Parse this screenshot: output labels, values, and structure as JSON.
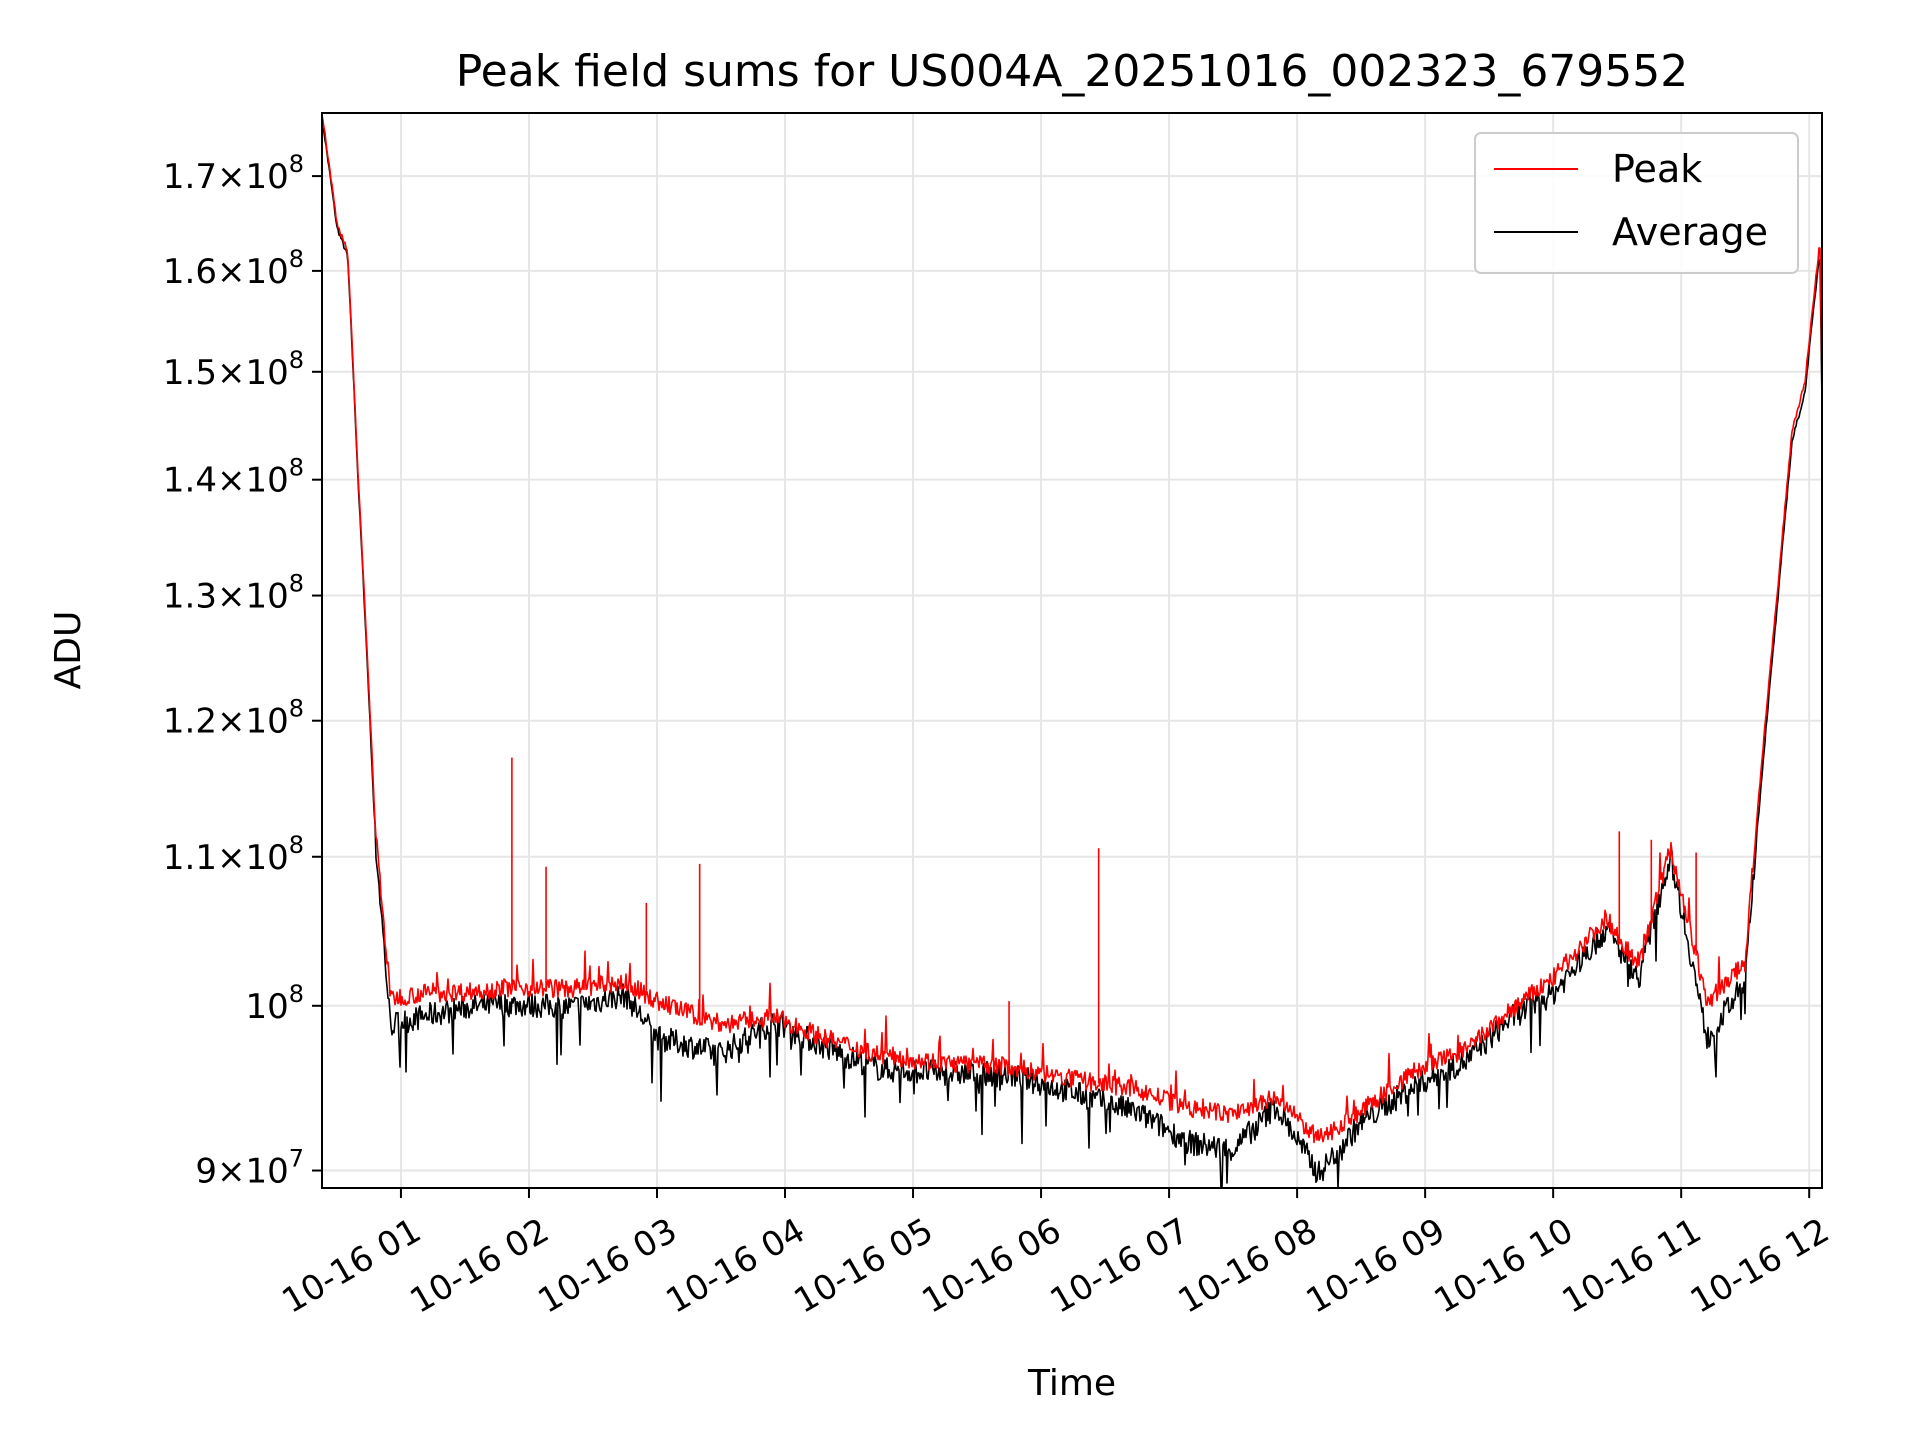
{
  "chart_data": {
    "type": "line",
    "title": "Peak field sums for US004A_20251016_002323_679552",
    "xlabel": "Time",
    "ylabel": "ADU",
    "y_scale": "log",
    "ylim": [
      89000000,
      177000000
    ],
    "xlim": [
      "2025-10-16 00:23",
      "2025-10-16 12:06"
    ],
    "grid": true,
    "legend_position": "top-right",
    "x_ticks": [
      {
        "value": "2025-10-16 01:00",
        "label": "10-16 01"
      },
      {
        "value": "2025-10-16 02:00",
        "label": "10-16 02"
      },
      {
        "value": "2025-10-16 03:00",
        "label": "10-16 03"
      },
      {
        "value": "2025-10-16 04:00",
        "label": "10-16 04"
      },
      {
        "value": "2025-10-16 05:00",
        "label": "10-16 05"
      },
      {
        "value": "2025-10-16 06:00",
        "label": "10-16 06"
      },
      {
        "value": "2025-10-16 07:00",
        "label": "10-16 07"
      },
      {
        "value": "2025-10-16 08:00",
        "label": "10-16 08"
      },
      {
        "value": "2025-10-16 09:00",
        "label": "10-16 09"
      },
      {
        "value": "2025-10-16 10:00",
        "label": "10-16 10"
      },
      {
        "value": "2025-10-16 11:00",
        "label": "10-16 11"
      },
      {
        "value": "2025-10-16 12:00",
        "label": "10-16 12"
      }
    ],
    "y_ticks": [
      {
        "value": 90000000,
        "mantissa": "9",
        "exponent": "7"
      },
      {
        "value": 100000000,
        "mantissa": "",
        "exponent": "8"
      },
      {
        "value": 110000000,
        "mantissa": "1.1",
        "exponent": "8"
      },
      {
        "value": 120000000,
        "mantissa": "1.2",
        "exponent": "8"
      },
      {
        "value": 130000000,
        "mantissa": "1.3",
        "exponent": "8"
      },
      {
        "value": 140000000,
        "mantissa": "1.4",
        "exponent": "8"
      },
      {
        "value": 150000000,
        "mantissa": "1.5",
        "exponent": "8"
      },
      {
        "value": 160000000,
        "mantissa": "1.6",
        "exponent": "8"
      },
      {
        "value": 170000000,
        "mantissa": "1.7",
        "exponent": "8"
      }
    ],
    "series": [
      {
        "name": "Peak",
        "color": "#ff0000",
        "points": [
          [
            "2025-10-16 00:23",
            177000000
          ],
          [
            "2025-10-16 00:30",
            165000000
          ],
          [
            "2025-10-16 00:35",
            162000000
          ],
          [
            "2025-10-16 00:40",
            140000000
          ],
          [
            "2025-10-16 00:48",
            112000000
          ],
          [
            "2025-10-16 00:55",
            100500000
          ],
          [
            "2025-10-16 01:10",
            100800000
          ],
          [
            "2025-10-16 01:30",
            100900000
          ],
          [
            "2025-10-16 01:52",
            101200000
          ],
          [
            "2025-10-16 02:20",
            101100000
          ],
          [
            "2025-10-16 02:45",
            101500000
          ],
          [
            "2025-10-16 03:00",
            100300000
          ],
          [
            "2025-10-16 03:30",
            98800000
          ],
          [
            "2025-10-16 03:55",
            99300000
          ],
          [
            "2025-10-16 04:20",
            97900000
          ],
          [
            "2025-10-16 04:45",
            96900000
          ],
          [
            "2025-10-16 05:15",
            96400000
          ],
          [
            "2025-10-16 05:45",
            96200000
          ],
          [
            "2025-10-16 06:15",
            95400000
          ],
          [
            "2025-10-16 06:45",
            94800000
          ],
          [
            "2025-10-16 07:10",
            93600000
          ],
          [
            "2025-10-16 07:30",
            93300000
          ],
          [
            "2025-10-16 07:50",
            94300000
          ],
          [
            "2025-10-16 08:10",
            91800000
          ],
          [
            "2025-10-16 08:30",
            93500000
          ],
          [
            "2025-10-16 08:55",
            95900000
          ],
          [
            "2025-10-16 09:20",
            97300000
          ],
          [
            "2025-10-16 09:40",
            99700000
          ],
          [
            "2025-10-16 10:00",
            101800000
          ],
          [
            "2025-10-16 10:25",
            105800000
          ],
          [
            "2025-10-16 10:40",
            102500000
          ],
          [
            "2025-10-16 10:55",
            110600000
          ],
          [
            "2025-10-16 11:12",
            100200000
          ],
          [
            "2025-10-16 11:30",
            102800000
          ],
          [
            "2025-10-16 11:45",
            130000000
          ],
          [
            "2025-10-16 11:52",
            144500000
          ],
          [
            "2025-10-16 11:58",
            149000000
          ],
          [
            "2025-10-16 12:05",
            163000000
          ],
          [
            "2025-10-16 12:06",
            150000000
          ]
        ],
        "spikes": [
          [
            "2025-10-16 01:52",
            117200000
          ],
          [
            "2025-10-16 02:08",
            109300000
          ],
          [
            "2025-10-16 02:55",
            106800000
          ],
          [
            "2025-10-16 03:20",
            109500000
          ],
          [
            "2025-10-16 06:27",
            110600000
          ],
          [
            "2025-10-16 05:45",
            100300000
          ],
          [
            "2025-10-16 10:31",
            111800000
          ],
          [
            "2025-10-16 10:46",
            111200000
          ],
          [
            "2025-10-16 11:07",
            110300000
          ]
        ]
      },
      {
        "name": "Average",
        "color": "#000000",
        "points": [
          [
            "2025-10-16 00:23",
            176500000
          ],
          [
            "2025-10-16 00:30",
            164500000
          ],
          [
            "2025-10-16 00:35",
            161500000
          ],
          [
            "2025-10-16 00:40",
            139500000
          ],
          [
            "2025-10-16 00:48",
            111000000
          ],
          [
            "2025-10-16 00:55",
            98800000
          ],
          [
            "2025-10-16 01:10",
            99300000
          ],
          [
            "2025-10-16 01:30",
            99900000
          ],
          [
            "2025-10-16 01:52",
            100100000
          ],
          [
            "2025-10-16 02:20",
            99900000
          ],
          [
            "2025-10-16 02:45",
            100700000
          ],
          [
            "2025-10-16 03:00",
            98000000
          ],
          [
            "2025-10-16 03:30",
            97000000
          ],
          [
            "2025-10-16 03:55",
            99000000
          ],
          [
            "2025-10-16 04:20",
            97300000
          ],
          [
            "2025-10-16 04:45",
            96000000
          ],
          [
            "2025-10-16 05:15",
            95800000
          ],
          [
            "2025-10-16 05:45",
            95700000
          ],
          [
            "2025-10-16 06:15",
            94600000
          ],
          [
            "2025-10-16 06:45",
            93400000
          ],
          [
            "2025-10-16 07:10",
            91600000
          ],
          [
            "2025-10-16 07:30",
            91200000
          ],
          [
            "2025-10-16 07:50",
            93800000
          ],
          [
            "2025-10-16 08:10",
            89800000
          ],
          [
            "2025-10-16 08:30",
            92800000
          ],
          [
            "2025-10-16 08:55",
            95000000
          ],
          [
            "2025-10-16 09:20",
            96600000
          ],
          [
            "2025-10-16 09:40",
            99200000
          ],
          [
            "2025-10-16 10:00",
            100800000
          ],
          [
            "2025-10-16 10:25",
            105000000
          ],
          [
            "2025-10-16 10:40",
            101700000
          ],
          [
            "2025-10-16 10:55",
            110100000
          ],
          [
            "2025-10-16 11:12",
            97900000
          ],
          [
            "2025-10-16 11:30",
            101500000
          ],
          [
            "2025-10-16 11:45",
            129000000
          ],
          [
            "2025-10-16 11:52",
            143500000
          ],
          [
            "2025-10-16 11:58",
            148000000
          ],
          [
            "2025-10-16 12:05",
            162000000
          ],
          [
            "2025-10-16 12:06",
            147000000
          ]
        ]
      }
    ]
  }
}
